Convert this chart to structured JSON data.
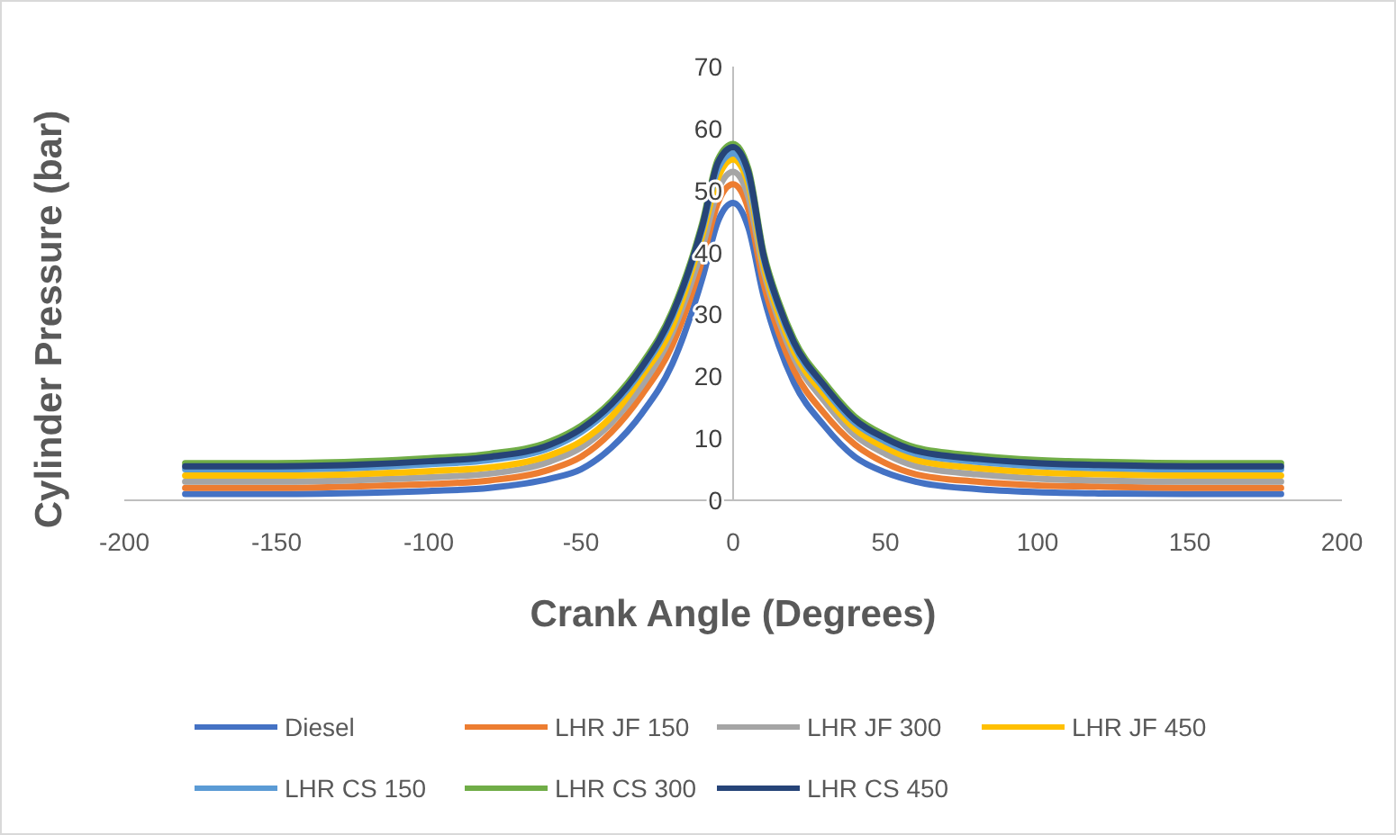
{
  "chart_data": {
    "type": "line",
    "xlabel": "Crank Angle (Degrees)",
    "ylabel": "Cylinder Pressure (bar)",
    "x": [
      -180,
      -150,
      -120,
      -100,
      -80,
      -60,
      -50,
      -40,
      -30,
      -20,
      -10,
      -5,
      0,
      5,
      10,
      15,
      20,
      30,
      40,
      50,
      60,
      80,
      100,
      120,
      150,
      180
    ],
    "xlim": [
      -200,
      200
    ],
    "xticks": [
      -200,
      -150,
      -100,
      -50,
      0,
      50,
      100,
      150,
      200
    ],
    "ylim": [
      0,
      70
    ],
    "yticks": [
      0,
      10,
      20,
      30,
      40,
      50,
      60,
      70
    ],
    "grid": false,
    "legend": "bottom",
    "marker": "none",
    "line_style": "solid",
    "series": [
      {
        "name": "Diesel",
        "color": "#4472c4",
        "values": [
          1,
          1,
          1.2,
          1.5,
          2,
          3.5,
          5,
          8.5,
          14,
          22,
          36,
          45,
          48,
          44,
          33,
          25,
          19,
          12,
          7,
          4.5,
          3,
          1.8,
          1.3,
          1.1,
          1,
          1
        ]
      },
      {
        "name": "LHR JF 150",
        "color": "#ed7d31",
        "values": [
          2,
          2,
          2.3,
          2.6,
          3.2,
          5,
          7,
          11,
          17,
          25,
          39,
          48,
          51,
          47,
          35,
          27,
          21,
          14,
          9,
          6,
          4.2,
          3,
          2.4,
          2.2,
          2,
          2
        ]
      },
      {
        "name": "LHR JF 300",
        "color": "#a5a5a5",
        "values": [
          3,
          3,
          3.3,
          3.7,
          4.3,
          6.3,
          8.5,
          12.5,
          18.5,
          27,
          41,
          50,
          53,
          49,
          37,
          29,
          23,
          16,
          10.5,
          7.5,
          5.5,
          4.2,
          3.5,
          3.2,
          3,
          3
        ]
      },
      {
        "name": "LHR JF 450",
        "color": "#ffc000",
        "values": [
          4,
          4,
          4.3,
          4.7,
          5.3,
          7.3,
          9.5,
          13.5,
          20,
          28,
          43,
          52,
          55,
          51,
          38,
          30,
          24,
          17,
          11.5,
          8.5,
          6.5,
          5.2,
          4.5,
          4.2,
          4,
          4
        ]
      },
      {
        "name": "LHR CS 150",
        "color": "#5b9bd5",
        "values": [
          5,
          5,
          5.3,
          5.8,
          6.5,
          8.5,
          11,
          15,
          21,
          29.5,
          44,
          53.5,
          56,
          52,
          39,
          31,
          25,
          18,
          12.5,
          9.5,
          7.5,
          6.2,
          5.5,
          5.2,
          5,
          5
        ]
      },
      {
        "name": "LHR CS 300",
        "color": "#70ad47",
        "values": [
          6,
          6,
          6.3,
          6.8,
          7.5,
          9.5,
          12,
          16,
          22,
          30.5,
          45,
          55,
          57.5,
          53.5,
          40,
          32,
          26,
          19,
          13.5,
          10.5,
          8.5,
          7.2,
          6.5,
          6.2,
          6,
          6
        ]
      },
      {
        "name": "LHR CS 450",
        "color": "#264478",
        "values": [
          5.5,
          5.5,
          5.8,
          6.3,
          7,
          9,
          11.5,
          15.5,
          21.5,
          30,
          44.5,
          54.5,
          57,
          53,
          39.5,
          31.5,
          25.5,
          18.5,
          13,
          10,
          8,
          6.7,
          6,
          5.7,
          5.5,
          5.5
        ]
      }
    ]
  }
}
